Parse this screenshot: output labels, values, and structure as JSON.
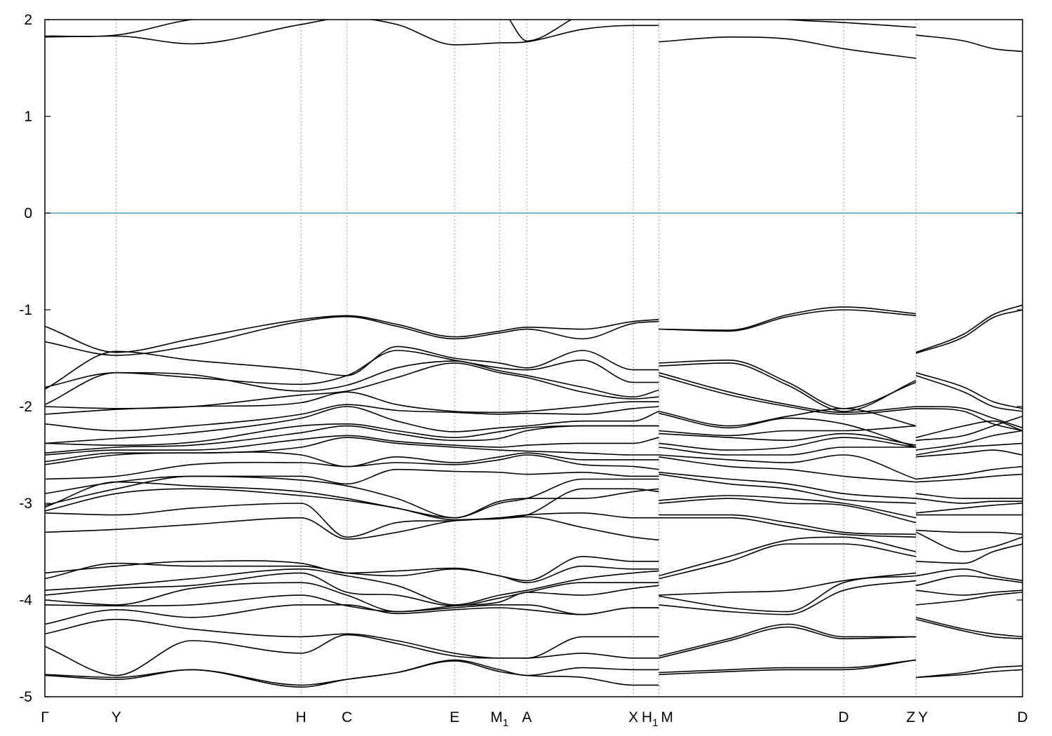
{
  "chart_data": {
    "type": "line",
    "title": "",
    "xlabel": "",
    "ylabel": "",
    "ylim": [
      -5,
      2
    ],
    "yticks": [
      2,
      1,
      0,
      -1,
      -2,
      -3,
      -4,
      -5
    ],
    "ytick_labels": [
      "2",
      "1",
      "0",
      "-1",
      "-2",
      "-3",
      "-4",
      "-5"
    ],
    "kpath": [
      {
        "pos": 0.0,
        "label": "Γ",
        "sub": ""
      },
      {
        "pos": 0.073,
        "label": "Y",
        "sub": ""
      },
      {
        "pos": 0.262,
        "label": "H",
        "sub": ""
      },
      {
        "pos": 0.309,
        "label": "C",
        "sub": ""
      },
      {
        "pos": 0.419,
        "label": "E",
        "sub": ""
      },
      {
        "pos": 0.465,
        "label": "M",
        "sub": "1"
      },
      {
        "pos": 0.493,
        "label": "A",
        "sub": ""
      },
      {
        "pos": 0.602,
        "label": "X",
        "sub": ""
      },
      {
        "pos": 0.628,
        "label": "H",
        "sub": "1"
      },
      {
        "pos": 0.628,
        "label": "M",
        "sub": ""
      },
      {
        "pos": 0.817,
        "label": "D",
        "sub": ""
      },
      {
        "pos": 0.891,
        "label": "Z",
        "sub": ""
      },
      {
        "pos": 0.891,
        "label": "Y",
        "sub": ""
      },
      {
        "pos": 1.0,
        "label": "D",
        "sub": ""
      }
    ],
    "fermi_level": 0,
    "fermi_color": "#4aa7c6",
    "band_color": "#000000",
    "segments": [
      {
        "x": [
          0.0,
          0.073,
          0.15,
          0.262,
          0.309,
          0.36,
          0.419,
          0.465,
          0.493,
          0.55,
          0.602,
          0.628
        ],
        "bands": [
          [
            1.82,
            1.83,
            1.75,
            1.95,
            2.02,
            1.95,
            1.74,
            1.76,
            1.77,
            1.9,
            1.94,
            1.94
          ],
          [
            1.83,
            1.84,
            2.0,
            2.05,
            2.1,
            2.1,
            2.1,
            2.1,
            1.78,
            2.05,
            2.1,
            2.1
          ],
          [
            -1.17,
            -1.44,
            -1.3,
            -1.1,
            -1.06,
            -1.15,
            -1.28,
            -1.22,
            -1.18,
            -1.2,
            -1.12,
            -1.1
          ],
          [
            -1.33,
            -1.47,
            -1.37,
            -1.12,
            -1.07,
            -1.17,
            -1.3,
            -1.24,
            -1.2,
            -1.3,
            -1.14,
            -1.12
          ],
          [
            -1.82,
            -1.43,
            -1.52,
            -1.62,
            -1.68,
            -1.38,
            -1.5,
            -1.55,
            -1.6,
            -1.42,
            -1.62,
            -1.62
          ],
          [
            -1.8,
            -1.65,
            -1.7,
            -1.77,
            -1.68,
            -1.42,
            -1.52,
            -1.6,
            -1.62,
            -1.52,
            -1.75,
            -1.75
          ],
          [
            -1.98,
            -1.65,
            -1.67,
            -1.84,
            -1.78,
            -1.6,
            -1.53,
            -1.63,
            -1.68,
            -1.8,
            -1.9,
            -1.83
          ],
          [
            -2.0,
            -2.02,
            -2.0,
            -1.88,
            -1.84,
            -1.7,
            -1.55,
            -1.65,
            -1.7,
            -1.85,
            -1.92,
            -1.9
          ],
          [
            -2.08,
            -2.03,
            -2.0,
            -1.96,
            -1.85,
            -1.98,
            -2.05,
            -2.06,
            -2.05,
            -2.0,
            -1.95,
            -1.95
          ],
          [
            -2.18,
            -2.25,
            -2.2,
            -2.08,
            -1.98,
            -2.04,
            -2.06,
            -2.08,
            -2.07,
            -2.08,
            -2.02,
            -2.0
          ],
          [
            -2.38,
            -2.33,
            -2.27,
            -2.12,
            -2.0,
            -2.15,
            -2.26,
            -2.22,
            -2.2,
            -2.15,
            -2.15,
            -2.05
          ],
          [
            -2.38,
            -2.4,
            -2.37,
            -2.2,
            -2.18,
            -2.25,
            -2.32,
            -2.26,
            -2.22,
            -2.2,
            -2.2,
            -2.2
          ],
          [
            -2.48,
            -2.42,
            -2.4,
            -2.27,
            -2.2,
            -2.28,
            -2.35,
            -2.33,
            -2.25,
            -2.2,
            -2.2,
            -2.2
          ],
          [
            -2.5,
            -2.45,
            -2.45,
            -2.34,
            -2.3,
            -2.36,
            -2.4,
            -2.42,
            -2.4,
            -2.38,
            -2.38,
            -2.32
          ],
          [
            -2.57,
            -2.48,
            -2.48,
            -2.42,
            -2.32,
            -2.38,
            -2.42,
            -2.45,
            -2.46,
            -2.48,
            -2.5,
            -2.5
          ],
          [
            -2.6,
            -2.5,
            -2.48,
            -2.5,
            -2.62,
            -2.52,
            -2.58,
            -2.52,
            -2.48,
            -2.55,
            -2.55,
            -2.55
          ],
          [
            -2.75,
            -2.72,
            -2.6,
            -2.58,
            -2.62,
            -2.58,
            -2.6,
            -2.55,
            -2.5,
            -2.6,
            -2.62,
            -2.65
          ],
          [
            -2.9,
            -2.78,
            -2.72,
            -2.72,
            -2.8,
            -2.65,
            -2.67,
            -2.68,
            -2.7,
            -2.68,
            -2.72,
            -2.72
          ],
          [
            -3.02,
            -2.85,
            -2.72,
            -2.76,
            -2.82,
            -2.95,
            -3.15,
            -3.0,
            -2.95,
            -2.75,
            -2.75,
            -2.75
          ],
          [
            -3.04,
            -2.78,
            -2.82,
            -2.88,
            -2.95,
            -3.05,
            -3.15,
            -2.98,
            -2.95,
            -2.95,
            -2.88,
            -2.85
          ],
          [
            -3.08,
            -2.9,
            -2.85,
            -2.92,
            -2.97,
            -3.05,
            -3.17,
            -3.15,
            -3.12,
            -2.85,
            -2.85,
            -2.88
          ],
          [
            -3.1,
            -3.12,
            -3.05,
            -3.0,
            -3.35,
            -3.2,
            -3.18,
            -3.15,
            -3.12,
            -3.1,
            -3.15,
            -3.15
          ],
          [
            -3.3,
            -3.27,
            -3.22,
            -3.15,
            -3.37,
            -3.3,
            -3.18,
            -3.16,
            -3.14,
            -3.25,
            -3.35,
            -3.38
          ],
          [
            -3.72,
            -3.65,
            -3.6,
            -3.62,
            -3.72,
            -3.7,
            -3.67,
            -3.75,
            -3.8,
            -3.55,
            -3.6,
            -3.6
          ],
          [
            -3.78,
            -3.62,
            -3.65,
            -3.65,
            -3.72,
            -3.75,
            -3.68,
            -3.75,
            -3.82,
            -3.65,
            -3.68,
            -3.68
          ],
          [
            -3.9,
            -3.85,
            -3.78,
            -3.68,
            -3.75,
            -3.85,
            -4.05,
            -3.95,
            -3.9,
            -3.78,
            -3.72,
            -3.7
          ],
          [
            -3.95,
            -3.88,
            -3.85,
            -3.72,
            -3.92,
            -3.95,
            -4.06,
            -3.98,
            -3.92,
            -3.82,
            -3.82,
            -3.82
          ],
          [
            -4.0,
            -4.05,
            -3.88,
            -3.82,
            -3.95,
            -4.12,
            -4.06,
            -4.02,
            -3.92,
            -3.95,
            -3.88,
            -3.85
          ],
          [
            -4.05,
            -4.06,
            -4.05,
            -3.95,
            -4.06,
            -4.12,
            -4.08,
            -4.05,
            -4.05,
            -4.15,
            -4.08,
            -4.08
          ],
          [
            -4.25,
            -4.1,
            -4.18,
            -4.05,
            -4.05,
            -4.14,
            -4.1,
            -4.08,
            -4.1,
            -4.15,
            -4.08,
            -4.08
          ],
          [
            -4.35,
            -4.2,
            -4.3,
            -4.38,
            -4.35,
            -4.42,
            -4.55,
            -4.6,
            -4.6,
            -4.38,
            -4.38,
            -4.38
          ],
          [
            -4.48,
            -4.78,
            -4.42,
            -4.55,
            -4.36,
            -4.45,
            -4.58,
            -4.6,
            -4.6,
            -4.55,
            -4.6,
            -4.6
          ],
          [
            -4.77,
            -4.8,
            -4.72,
            -4.88,
            -4.82,
            -4.75,
            -4.62,
            -4.72,
            -4.78,
            -4.7,
            -4.72,
            -4.72
          ],
          [
            -4.78,
            -4.82,
            -4.72,
            -4.9,
            -4.82,
            -4.75,
            -4.63,
            -4.74,
            -4.78,
            -4.8,
            -4.88,
            -4.88
          ]
        ]
      },
      {
        "x": [
          0.628,
          0.7,
          0.76,
          0.817,
          0.891
        ],
        "bands": [
          [
            1.77,
            1.82,
            1.8,
            1.7,
            1.6
          ],
          [
            2.1,
            2.05,
            2.0,
            1.97,
            1.92
          ],
          [
            -1.2,
            -1.21,
            -1.05,
            -0.97,
            -1.04
          ],
          [
            -1.2,
            -1.22,
            -1.07,
            -1.0,
            -1.06
          ],
          [
            -1.55,
            -1.52,
            -1.75,
            -2.02,
            -1.75
          ],
          [
            -1.58,
            -1.55,
            -1.78,
            -2.05,
            -1.73
          ],
          [
            -1.65,
            -1.85,
            -1.98,
            -2.06,
            -2.0
          ],
          [
            -1.68,
            -1.88,
            -2.0,
            -2.08,
            -2.02
          ],
          [
            -2.05,
            -2.2,
            -2.1,
            -2.02,
            -2.2
          ],
          [
            -2.07,
            -2.22,
            -2.12,
            -2.18,
            -2.42
          ],
          [
            -2.25,
            -2.3,
            -2.25,
            -2.25,
            -2.2
          ],
          [
            -2.28,
            -2.32,
            -2.35,
            -2.28,
            -2.4
          ],
          [
            -2.38,
            -2.45,
            -2.42,
            -2.32,
            -2.42
          ],
          [
            -2.42,
            -2.5,
            -2.5,
            -2.42,
            -2.42
          ],
          [
            -2.5,
            -2.55,
            -2.58,
            -2.5,
            -2.75
          ],
          [
            -2.52,
            -2.62,
            -2.65,
            -2.72,
            -2.78
          ],
          [
            -2.68,
            -2.75,
            -2.8,
            -2.9,
            -2.95
          ],
          [
            -2.7,
            -2.8,
            -2.85,
            -2.96,
            -3.0
          ],
          [
            -2.97,
            -2.92,
            -2.95,
            -3.0,
            -3.15
          ],
          [
            -3.0,
            -2.95,
            -3.0,
            -3.02,
            -3.2
          ],
          [
            -3.12,
            -3.12,
            -3.2,
            -3.3,
            -3.32
          ],
          [
            -3.15,
            -3.15,
            -3.24,
            -3.32,
            -3.35
          ],
          [
            -3.75,
            -3.55,
            -3.38,
            -3.35,
            -3.5
          ],
          [
            -3.78,
            -3.6,
            -3.42,
            -3.42,
            -3.55
          ],
          [
            -3.95,
            -3.92,
            -3.9,
            -3.8,
            -3.72
          ],
          [
            -3.96,
            -4.08,
            -4.12,
            -3.82,
            -3.75
          ],
          [
            -4.05,
            -4.12,
            -4.15,
            -3.9,
            -3.8
          ],
          [
            -4.58,
            -4.4,
            -4.25,
            -4.38,
            -4.38
          ],
          [
            -4.6,
            -4.42,
            -4.28,
            -4.4,
            -4.38
          ],
          [
            -4.75,
            -4.72,
            -4.7,
            -4.7,
            -4.62
          ],
          [
            -4.77,
            -4.74,
            -4.72,
            -4.72,
            -4.62
          ]
        ]
      },
      {
        "x": [
          0.891,
          0.94,
          0.97,
          1.0
        ],
        "bands": [
          [
            1.84,
            1.78,
            1.7,
            1.67
          ],
          [
            2.1,
            2.05,
            2.02,
            2.0
          ],
          [
            -1.44,
            -1.25,
            -1.05,
            -0.95
          ],
          [
            -1.45,
            -1.28,
            -1.08,
            -1.0
          ],
          [
            -1.65,
            -1.8,
            -1.95,
            -2.02
          ],
          [
            -1.68,
            -1.85,
            -2.0,
            -2.05
          ],
          [
            -2.0,
            -2.02,
            -2.12,
            -2.22
          ],
          [
            -2.02,
            -2.05,
            -2.18,
            -2.25
          ],
          [
            -2.32,
            -2.2,
            -2.15,
            -2.25
          ],
          [
            -2.35,
            -2.3,
            -2.2,
            -2.1
          ],
          [
            -2.45,
            -2.38,
            -2.3,
            -2.25
          ],
          [
            -2.5,
            -2.42,
            -2.4,
            -2.38
          ],
          [
            -2.52,
            -2.48,
            -2.45,
            -2.5
          ],
          [
            -2.75,
            -2.7,
            -2.65,
            -2.62
          ],
          [
            -2.78,
            -2.75,
            -2.72,
            -2.7
          ],
          [
            -2.9,
            -2.95,
            -2.95,
            -2.95
          ],
          [
            -2.95,
            -3.0,
            -2.98,
            -2.98
          ],
          [
            -3.1,
            -3.05,
            -3.02,
            -3.0
          ],
          [
            -3.12,
            -3.12,
            -3.12,
            -3.12
          ],
          [
            -3.28,
            -3.3,
            -3.3,
            -3.32
          ],
          [
            -3.3,
            -3.5,
            -3.45,
            -3.35
          ],
          [
            -3.6,
            -3.62,
            -3.5,
            -3.42
          ],
          [
            -3.75,
            -3.68,
            -3.75,
            -3.8
          ],
          [
            -3.85,
            -3.75,
            -3.78,
            -3.82
          ],
          [
            -3.9,
            -3.95,
            -3.92,
            -3.9
          ],
          [
            -4.05,
            -4.0,
            -3.95,
            -3.92
          ],
          [
            -4.18,
            -4.3,
            -4.35,
            -4.38
          ],
          [
            -4.2,
            -4.32,
            -4.38,
            -4.4
          ],
          [
            -4.8,
            -4.75,
            -4.7,
            -4.68
          ],
          [
            -4.8,
            -4.77,
            -4.74,
            -4.72
          ]
        ]
      }
    ]
  }
}
